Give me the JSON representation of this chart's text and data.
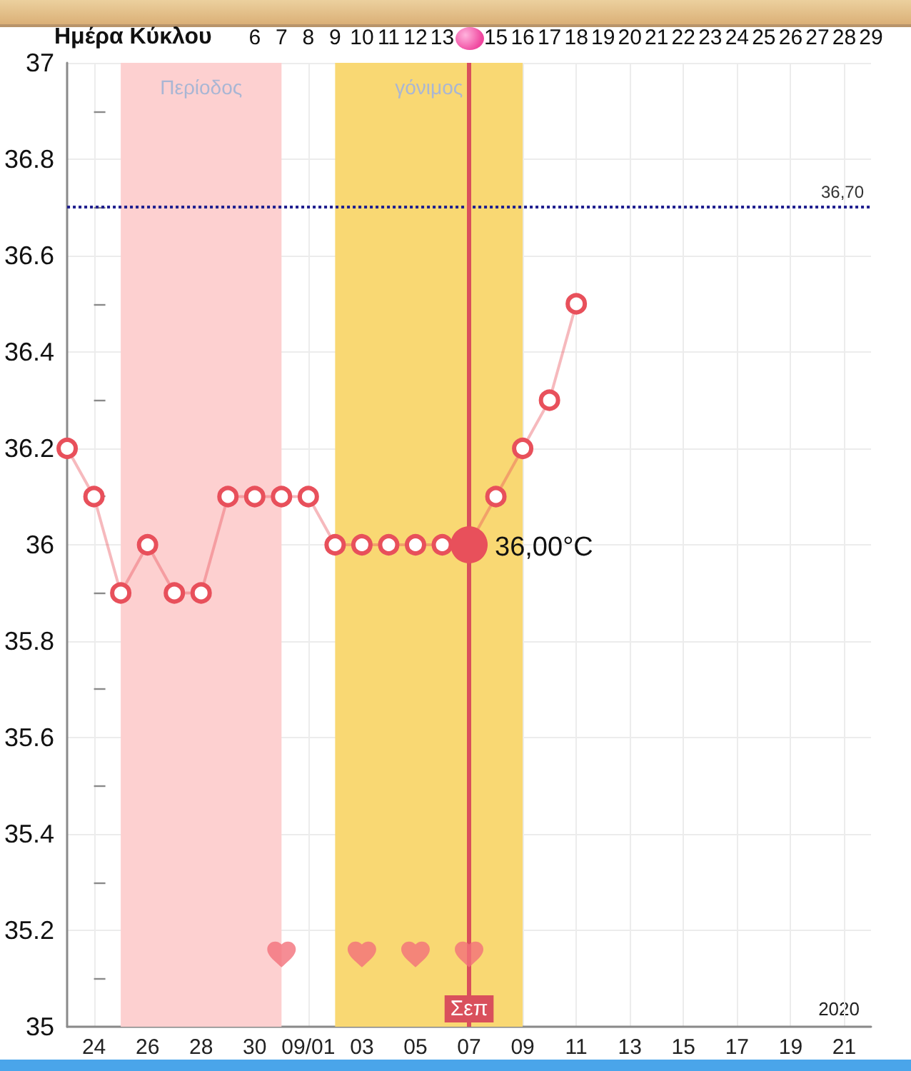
{
  "chart_data": {
    "type": "line",
    "x": [
      "2020-08-23",
      "2020-08-24",
      "2020-08-25",
      "2020-08-26",
      "2020-08-27",
      "2020-08-28",
      "2020-08-29",
      "2020-08-30",
      "2020-08-31",
      "2020-09-01",
      "2020-09-02",
      "2020-09-03",
      "2020-09-04",
      "2020-09-05",
      "2020-09-06",
      "2020-09-07",
      "2020-09-08",
      "2020-09-09",
      "2020-09-10",
      "2020-09-11"
    ],
    "series": [
      {
        "color": "#e8505b",
        "marker": "circle",
        "values": [
          36.2,
          36.1,
          35.9,
          36.0,
          35.9,
          35.9,
          36.1,
          36.1,
          36.1,
          36.1,
          36.0,
          36.0,
          36.0,
          36.0,
          36.0,
          36.0,
          36.1,
          36.2,
          36.3,
          36.5
        ]
      },
      {
        "type": "scatter",
        "color": "#f2707a",
        "x": [
          "2020-08-31",
          "2020-09-03",
          "2020-09-05",
          "2020-09-07"
        ],
        "values": [
          35.15,
          35.15,
          35.15,
          35.15
        ]
      }
    ],
    "xlim": [
      "2020-08-23",
      "2020-09-22"
    ],
    "xticks": [
      {
        "value": "2020-08-24",
        "label": "24"
      },
      {
        "value": "2020-08-26",
        "label": "26"
      },
      {
        "value": "2020-08-28",
        "label": "28"
      },
      {
        "value": "2020-08-30",
        "label": "30"
      },
      {
        "value": "2020-09-01",
        "label": "09/01"
      },
      {
        "value": "2020-09-03",
        "label": "03"
      },
      {
        "value": "2020-09-05",
        "label": "05"
      },
      {
        "value": "2020-09-07",
        "label": "07"
      },
      {
        "value": "2020-09-09",
        "label": "09"
      },
      {
        "value": "2020-09-11",
        "label": "11"
      },
      {
        "value": "2020-09-13",
        "label": "13"
      },
      {
        "value": "2020-09-15",
        "label": "15"
      },
      {
        "value": "2020-09-17",
        "label": "17"
      },
      {
        "value": "2020-09-19",
        "label": "19"
      },
      {
        "value": "2020-09-21",
        "label": "21"
      }
    ],
    "ylim": [
      35,
      37
    ],
    "yticks": [
      35,
      {
        "value": 35.1,
        "label": null
      },
      35.2,
      {
        "value": 35.3,
        "label": null
      },
      35.4,
      {
        "value": 35.5,
        "label": null
      },
      35.6,
      {
        "value": 35.7,
        "label": null
      },
      35.8,
      {
        "value": 35.9,
        "label": null
      },
      36,
      {
        "value": 36.1,
        "label": null
      },
      36.2,
      {
        "value": 36.3,
        "label": null
      },
      36.4,
      {
        "value": 36.5,
        "label": null
      },
      36.6,
      {
        "value": 36.7,
        "label": null
      },
      36.8,
      {
        "value": 36.9,
        "label": null
      },
      37
    ],
    "x2label": "Ημέρα Κύκλου",
    "x2lim": [
      -1,
      29
    ],
    "x2ticks": [
      6,
      7,
      8,
      9,
      10,
      11,
      12,
      13,
      {
        "value": 14,
        "label": null
      },
      15,
      16,
      17,
      18,
      19,
      20,
      21,
      22,
      23,
      24,
      25,
      26,
      27,
      28,
      29
    ],
    "ref_lines": [
      {
        "axis": "y",
        "value": 36.7,
        "label": "36,70",
        "color": "#1f1f8f",
        "line_style": "dotted"
      },
      {
        "axis": "x",
        "value": "2020-09-07",
        "label": "Σεπ",
        "color": "#d9505c"
      }
    ],
    "bands": [
      {
        "axis": "x",
        "from": "2020-08-25",
        "to": "2020-08-31",
        "label": "Περίοδος",
        "color": "#fdd0d0"
      },
      {
        "axis": "x",
        "from": "2020-09-02",
        "to": "2020-09-09",
        "label": "γόνιμος",
        "color": "#f9d873"
      }
    ],
    "annotations": [
      {
        "text": "36,00°C",
        "x": "2020-09-07",
        "y": 36
      },
      "2020"
    ],
    "grid": true
  }
}
